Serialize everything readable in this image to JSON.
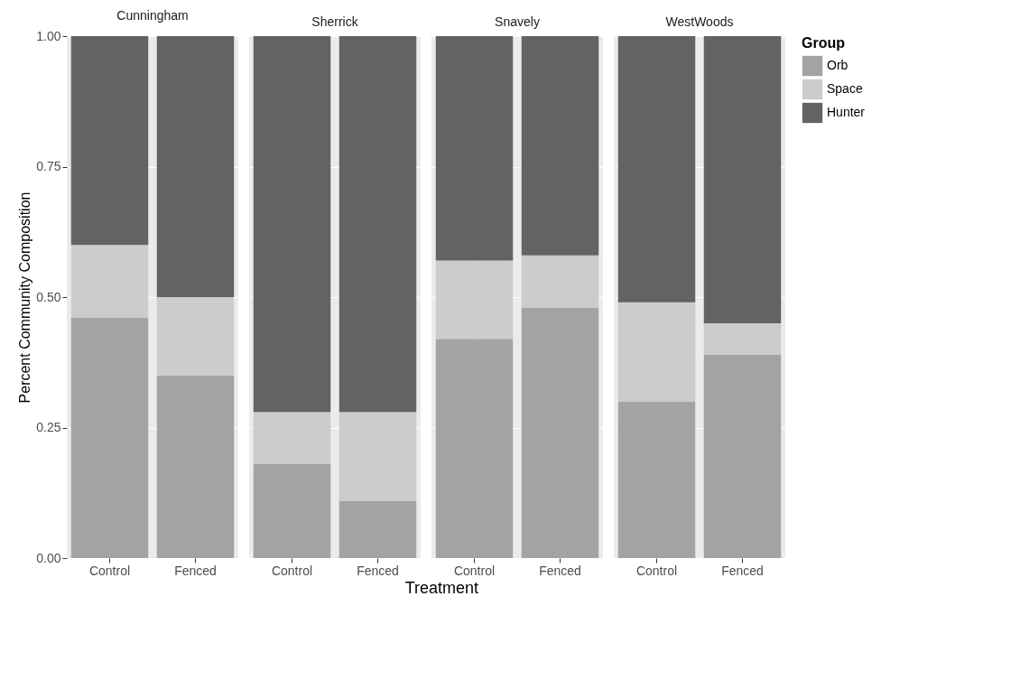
{
  "chart_data": [
    {
      "type": "bar",
      "title": "Cunningham",
      "ylabel": "Percent Community Composition",
      "categories": [
        "Control",
        "Fenced"
      ],
      "stacked": true,
      "ylim": [
        0,
        1
      ],
      "yticks": [
        {
          "value": 0,
          "label": "0.00"
        },
        {
          "value": 0.25,
          "label": "0.25"
        },
        {
          "value": 0.5,
          "label": "0.50"
        },
        {
          "value": 0.75,
          "label": "0.75"
        },
        {
          "value": 1,
          "label": "1.00"
        }
      ],
      "grid": true,
      "legend": "right",
      "legend_title": "Group",
      "series": [
        {
          "name": "Orb",
          "color": "#a3a3a3",
          "values": [
            0.46,
            0.35
          ]
        },
        {
          "name": "Space",
          "color": "#cccccc",
          "values": [
            0.14,
            0.15
          ]
        },
        {
          "name": "Hunter",
          "color": "#636363",
          "values": [
            0.4,
            0.5
          ]
        }
      ]
    },
    {
      "type": "bar",
      "title": "Sherrick",
      "xlabel": "Treatment",
      "categories": [
        "Control",
        "Fenced"
      ],
      "stacked": true,
      "ylim": [
        0,
        1
      ],
      "yticks": [
        0,
        0.25,
        0.5,
        0.75,
        1
      ],
      "grid": true,
      "tick_labels": "x",
      "series": [
        {
          "name": "Orb",
          "color": "#a3a3a3",
          "values": [
            0.18,
            0.11
          ]
        },
        {
          "name": "Space",
          "color": "#cccccc",
          "values": [
            0.1,
            0.17
          ]
        },
        {
          "name": "Hunter",
          "color": "#636363",
          "values": [
            0.72,
            0.72
          ]
        }
      ]
    },
    {
      "type": "bar",
      "title": "Snavely",
      "categories": [
        "Control",
        "Fenced"
      ],
      "stacked": true,
      "ylim": [
        0,
        1
      ],
      "yticks": [
        0,
        0.25,
        0.5,
        0.75,
        1
      ],
      "grid": true,
      "tick_labels": "x",
      "series": [
        {
          "name": "Orb",
          "color": "#a3a3a3",
          "values": [
            0.42,
            0.48
          ]
        },
        {
          "name": "Space",
          "color": "#cccccc",
          "values": [
            0.15,
            0.1
          ]
        },
        {
          "name": "Hunter",
          "color": "#636363",
          "values": [
            0.43,
            0.42
          ]
        }
      ]
    },
    {
      "type": "bar",
      "title": "WestWoods",
      "categories": [
        "Control",
        "Fenced"
      ],
      "stacked": true,
      "ylim": [
        0,
        1
      ],
      "yticks": [
        0,
        0.25,
        0.5,
        0.75,
        1
      ],
      "grid": true,
      "tick_labels": "x",
      "series": [
        {
          "name": "Orb",
          "color": "#a3a3a3",
          "values": [
            0.3,
            0.39
          ]
        },
        {
          "name": "Space",
          "color": "#cccccc",
          "values": [
            0.19,
            0.06
          ]
        },
        {
          "name": "Hunter",
          "color": "#636363",
          "values": [
            0.51,
            0.55
          ]
        }
      ]
    }
  ]
}
